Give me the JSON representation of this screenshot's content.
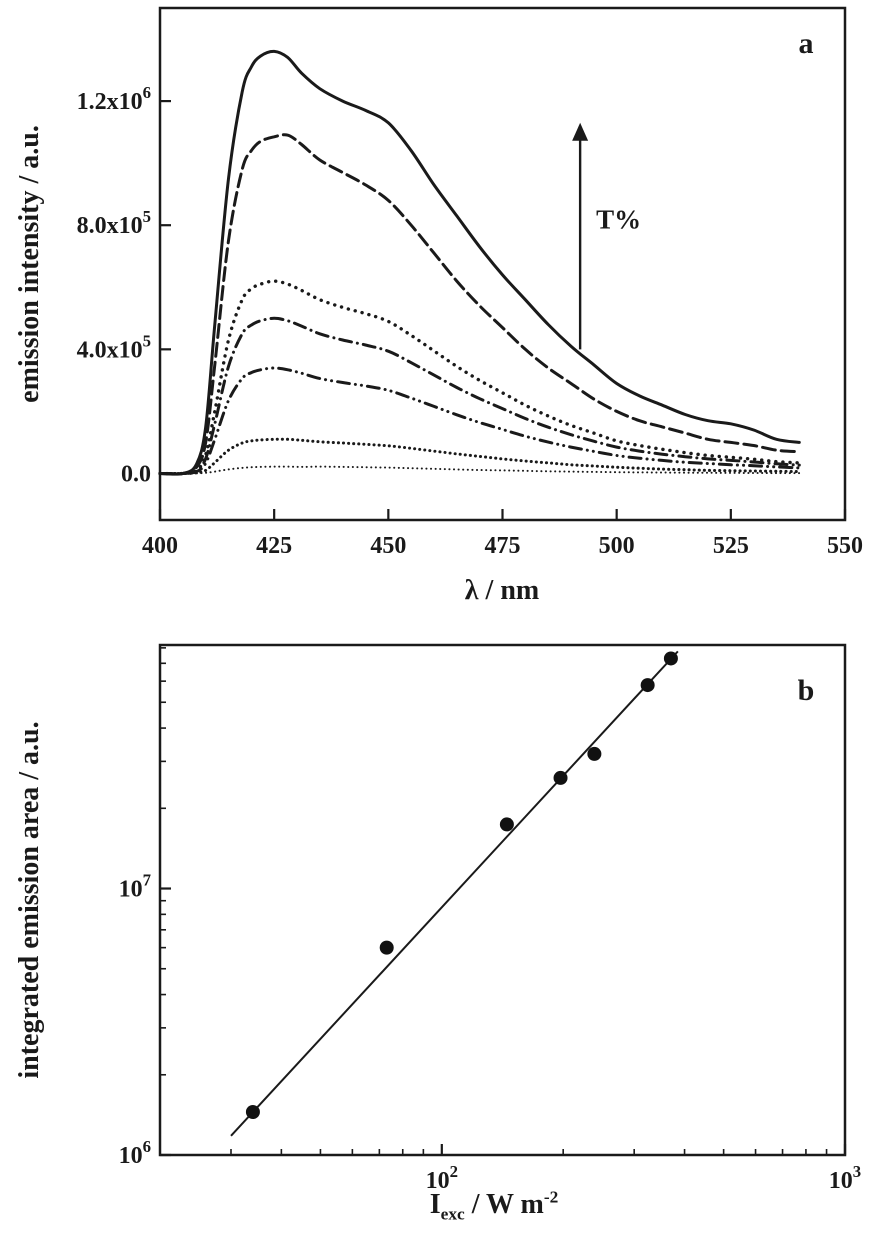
{
  "figure": {
    "ink_color": "#1a1a1a",
    "background": "#ffffff",
    "panel_a": {
      "label": "a",
      "xlabel": "λ / nm",
      "ylabel": "emission intensity / a.u.",
      "annotation": "T%"
    },
    "panel_b": {
      "label": "b",
      "ylabel": "integrated emission area / a.u.",
      "xlabel_prefix": "I",
      "xlabel_sub": "exc",
      "xlabel_mid": " / W m",
      "xlabel_sup": "-2"
    }
  },
  "chart_data": [
    {
      "id": "panel-a",
      "type": "line",
      "title": "",
      "xlabel": "λ / nm",
      "ylabel": "emission intensity / a.u.",
      "x_scale": "linear",
      "y_scale": "linear",
      "xlim": [
        400,
        550
      ],
      "ylim": [
        -150000,
        1500000
      ],
      "grid": false,
      "legend": "none",
      "x_ticks": [
        400,
        425,
        450,
        475,
        500,
        525,
        550
      ],
      "x_tick_labels": [
        "400",
        "425",
        "450",
        "475",
        "500",
        "525",
        "550"
      ],
      "y_ticks": [
        0,
        400000,
        800000,
        1200000
      ],
      "y_tick_labels": [
        "0.0",
        "4.0x10^5",
        "8.0x10^5",
        "1.2x10^6"
      ],
      "x": [
        400,
        405,
        408,
        410,
        412,
        415,
        418,
        420,
        422,
        425,
        428,
        431,
        435,
        440,
        445,
        450,
        455,
        460,
        465,
        470,
        475,
        480,
        485,
        490,
        495,
        500,
        505,
        510,
        515,
        520,
        525,
        530,
        535,
        540
      ],
      "series": [
        {
          "name": "highest-T%-solid",
          "dash": "none",
          "width": 3,
          "values": [
            0,
            0,
            30000,
            150000,
            480000,
            950000,
            1230000,
            1310000,
            1345000,
            1360000,
            1340000,
            1290000,
            1240000,
            1200000,
            1170000,
            1130000,
            1040000,
            930000,
            830000,
            730000,
            640000,
            560000,
            480000,
            410000,
            350000,
            290000,
            250000,
            220000,
            190000,
            170000,
            160000,
            140000,
            110000,
            100000
          ]
        },
        {
          "name": "dashed",
          "dash": "13 6",
          "width": 3,
          "values": [
            0,
            0,
            20000,
            100000,
            350000,
            750000,
            980000,
            1040000,
            1070000,
            1085000,
            1090000,
            1060000,
            1010000,
            970000,
            930000,
            880000,
            800000,
            710000,
            620000,
            540000,
            470000,
            400000,
            340000,
            290000,
            240000,
            200000,
            170000,
            150000,
            130000,
            110000,
            100000,
            90000,
            75000,
            70000
          ]
        },
        {
          "name": "dotted",
          "dash": "0.1 7",
          "width": 3.4,
          "values": [
            0,
            0,
            10000,
            60000,
            200000,
            430000,
            560000,
            595000,
            610000,
            620000,
            610000,
            590000,
            560000,
            535000,
            515000,
            490000,
            445000,
            395000,
            345000,
            300000,
            260000,
            220000,
            185000,
            155000,
            130000,
            105000,
            90000,
            78000,
            67000,
            58000,
            52000,
            46000,
            38000,
            34000
          ]
        },
        {
          "name": "dash-dot",
          "dash": "12 6 0.1 6",
          "width": 3,
          "values": [
            0,
            0,
            8000,
            48000,
            160000,
            345000,
            450000,
            478000,
            492000,
            500000,
            492000,
            475000,
            450000,
            430000,
            414000,
            394000,
            357000,
            317000,
            277000,
            241000,
            209000,
            177000,
            149000,
            125000,
            104000,
            85000,
            72000,
            62000,
            54000,
            47000,
            42000,
            37000,
            31000,
            27000
          ]
        },
        {
          "name": "dash-dot-dot",
          "dash": "12 6 0.1 6 0.1 6",
          "width": 3,
          "values": [
            0,
            0,
            6000,
            33000,
            110000,
            235000,
            306000,
            325000,
            334000,
            340000,
            334000,
            323000,
            306000,
            293000,
            282000,
            268000,
            243000,
            216000,
            189000,
            164000,
            142000,
            120000,
            101000,
            85000,
            71000,
            58000,
            49000,
            42000,
            36000,
            32000,
            28000,
            25000,
            21000,
            18000
          ]
        },
        {
          "name": "dense-dot",
          "dash": "0.1 5",
          "width": 3,
          "values": [
            0,
            0,
            2000,
            10000,
            35000,
            75000,
            98000,
            105000,
            108000,
            110000,
            110000,
            107000,
            102000,
            98000,
            94000,
            89000,
            81000,
            72000,
            63000,
            55000,
            47000,
            40000,
            34000,
            28000,
            24000,
            20000,
            17000,
            14000,
            12000,
            10000,
            9000,
            8000,
            7000,
            6000
          ]
        },
        {
          "name": "lowest-T%-fine-dot",
          "dash": "0.1 4.5",
          "width": 2,
          "values": [
            0,
            0,
            500,
            2000,
            6000,
            13000,
            18000,
            20000,
            21000,
            22000,
            22000,
            21000,
            22000,
            21000,
            20000,
            19000,
            17000,
            15000,
            13000,
            11000,
            10000,
            8500,
            7000,
            6000,
            5000,
            4200,
            3500,
            3000,
            2500,
            2100,
            1800,
            1500,
            1200,
            1000
          ]
        }
      ],
      "annotation": {
        "text": "T%",
        "arrow_x": 492,
        "arrow_y_from": 400000,
        "arrow_y_to": 1130000,
        "text_y": 790000,
        "text_dx": 16
      }
    },
    {
      "id": "panel-b",
      "type": "scatter",
      "title": "",
      "xlabel": "I_exc / W m^-2",
      "ylabel": "integrated emission area / a.u.",
      "x_scale": "log",
      "y_scale": "log",
      "xlim": [
        20,
        1000
      ],
      "ylim": [
        1000000,
        82000000
      ],
      "grid": false,
      "legend": "none",
      "x_ticks": [
        100,
        1000
      ],
      "x_tick_labels": [
        "10^2",
        "10^3"
      ],
      "y_ticks": [
        1000000,
        10000000
      ],
      "y_tick_labels": [
        "10^6",
        "10^7"
      ],
      "points": {
        "x": [
          34,
          73,
          145,
          197,
          239,
          324,
          370
        ],
        "y": [
          1450000,
          6000000,
          17400000,
          26000000,
          32000000,
          58000000,
          73000000
        ]
      },
      "fit_line": {
        "x": [
          30,
          385
        ],
        "y": [
          1180000,
          77600000
        ]
      },
      "marker": {
        "shape": "circle",
        "radius": 7,
        "color": "#111111"
      }
    }
  ]
}
